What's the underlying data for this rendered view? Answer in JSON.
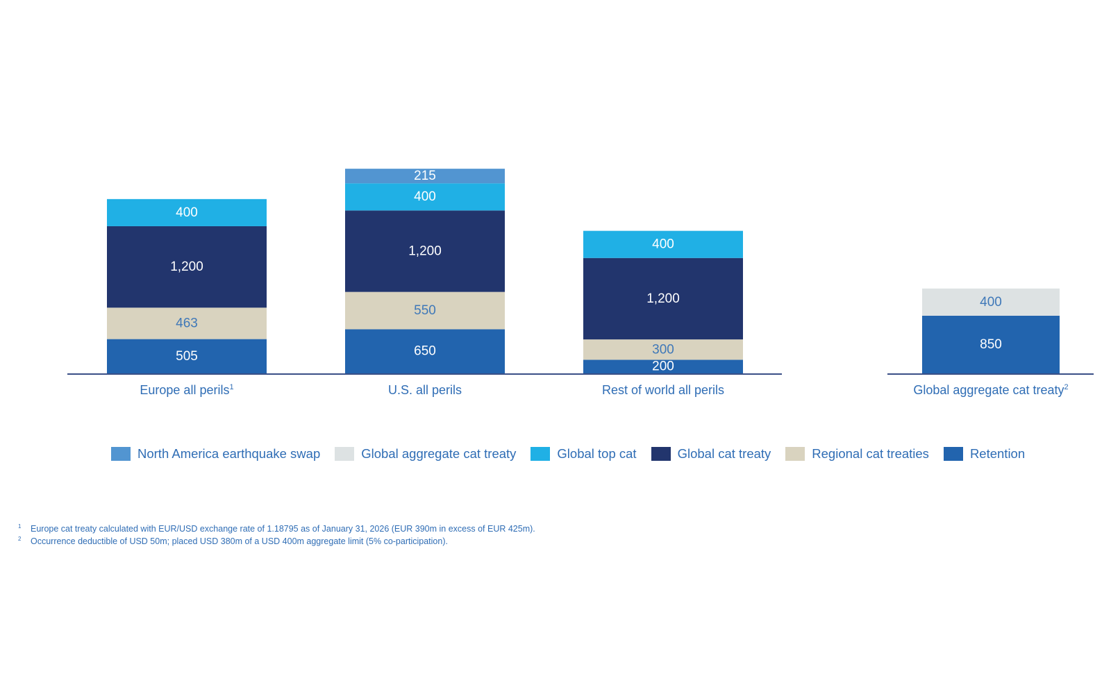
{
  "chart_data": {
    "type": "bar",
    "stacked": true,
    "title": "",
    "xlabel": "",
    "ylabel": "",
    "grid": false,
    "legend_position": "bottom",
    "units": "USD m",
    "categories": [
      {
        "label": "Europe all perils",
        "sup": "1",
        "group": "left"
      },
      {
        "label": "U.S. all perils",
        "sup": "",
        "group": "left"
      },
      {
        "label": "Rest of world all perils",
        "sup": "",
        "group": "left"
      },
      {
        "label": "Global aggregate cat treaty",
        "sup": "2",
        "group": "right"
      }
    ],
    "series": [
      {
        "name": "Retention",
        "color": "#2264ae",
        "text_color": "#ffffff",
        "values": [
          505,
          650,
          200,
          850
        ],
        "labels": [
          "505",
          "650",
          "200",
          "850"
        ]
      },
      {
        "name": "Regional cat treaties",
        "color": "#d9d3bf",
        "text_color": "#3f78b8",
        "values": [
          463,
          550,
          300,
          null
        ],
        "labels": [
          "463",
          "550",
          "300",
          ""
        ]
      },
      {
        "name": "Global cat treaty",
        "color": "#22356d",
        "text_color": "#ffffff",
        "values": [
          1200,
          1200,
          1200,
          null
        ],
        "labels": [
          "1,200",
          "1,200",
          "1,200",
          ""
        ]
      },
      {
        "name": "Global top cat",
        "color": "#20b0e5",
        "text_color": "#ffffff",
        "values": [
          400,
          400,
          400,
          null
        ],
        "labels": [
          "400",
          "400",
          "400",
          ""
        ]
      },
      {
        "name": "North America earthquake swap",
        "color": "#5295d1",
        "text_color": "#ffffff",
        "values": [
          null,
          215,
          null,
          null
        ],
        "labels": [
          "",
          "215",
          "",
          ""
        ]
      },
      {
        "name": "Global aggregate cat treaty",
        "color": "#dde2e3",
        "text_color": "#3f78b8",
        "values": [
          null,
          null,
          null,
          400
        ],
        "labels": [
          "",
          "",
          "",
          "400"
        ]
      }
    ],
    "legend_order": [
      "North America earthquake swap",
      "Global aggregate cat treaty",
      "Global top cat",
      "Global cat treaty",
      "Regional cat treaties",
      "Retention"
    ]
  },
  "axis_color": "#3a4f86",
  "text_color": "#2f6db5",
  "footnotes": [
    {
      "mark": "1",
      "text": "Europe cat treaty calculated with EUR/USD exchange rate of 1.18795 as of January 31, 2026 (EUR 390m in excess of EUR 425m)."
    },
    {
      "mark": "2",
      "text": "Occurrence deductible of USD 50m; placed USD 380m of a USD 400m aggregate limit (5% co-participation)."
    }
  ]
}
